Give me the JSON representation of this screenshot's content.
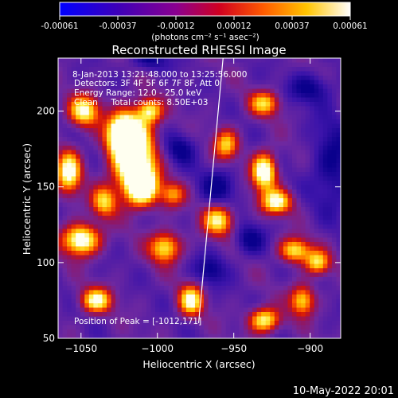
{
  "colorbar": {
    "ticks": [
      "-0.00061",
      "-0.00037",
      "-0.00012",
      "0.00012",
      "0.00037",
      "0.00061"
    ],
    "units": "(photons cm⁻² s⁻¹ asec⁻²)"
  },
  "chart_data": {
    "type": "heatmap",
    "title": "Reconstructed RHESSI Image",
    "xlabel": "Heliocentric X (arcsec)",
    "ylabel": "Heliocentric Y (arcsec)",
    "xlim": [
      -1065,
      -880
    ],
    "ylim": [
      50,
      235
    ],
    "x_ticks": [
      -1050,
      -1000,
      -950,
      -900
    ],
    "y_ticks": [
      50,
      100,
      150,
      200
    ],
    "x_tick_labels": [
      "−1050",
      "−1000",
      "−950",
      "−900"
    ],
    "y_tick_labels": [
      "50",
      "100",
      "150",
      "200"
    ],
    "colorbar_range": [
      -0.00061,
      0.00061
    ],
    "colormap": "IDL color table 3-like: blue → purple → red → orange → yellow → white",
    "annotations": [
      "8-Jan-2013 13:21:48.000 to 13:25:56.000",
      "Detectors: 3F 4F 5F 6F 7F 8F, Att 0",
      "Energy Range: 12.0 - 25.0 keV",
      "Clean     Total counts: 8.50E+03",
      "Position of Peak = [-1012,171]"
    ],
    "peak": {
      "x": -1012,
      "y": 171
    },
    "limb_line": [
      {
        "x": -973,
        "y": 60
      },
      {
        "x": -957,
        "y": 235
      }
    ],
    "footer": "10-May-2022 20:01"
  }
}
